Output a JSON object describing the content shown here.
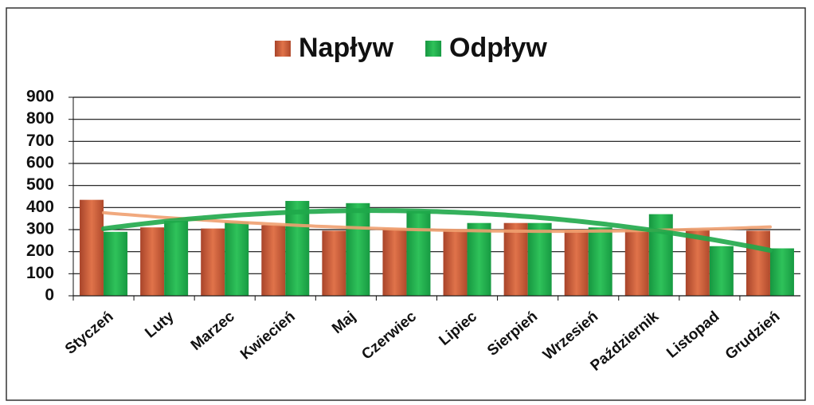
{
  "chart_data": {
    "type": "bar",
    "categories": [
      "Styczeń",
      "Luty",
      "Marzec",
      "Kwiecień",
      "Maj",
      "Czerwiec",
      "Lipiec",
      "Sierpień",
      "Wrzesień",
      "Październik",
      "Listopad",
      "Grudzień"
    ],
    "series": [
      {
        "name": "Napływ",
        "color": "#d0603a",
        "values": [
          435,
          310,
          305,
          320,
          295,
          305,
          300,
          330,
          300,
          300,
          300,
          295
        ]
      },
      {
        "name": "Odpływ",
        "color": "#21b04b",
        "values": [
          290,
          340,
          335,
          430,
          420,
          385,
          330,
          330,
          310,
          370,
          225,
          215
        ]
      }
    ],
    "ylim": [
      0,
      900
    ],
    "yticks": [
      0,
      100,
      200,
      300,
      400,
      500,
      600,
      700,
      800,
      900
    ],
    "grid": true,
    "legend": "top",
    "trendline": true
  }
}
